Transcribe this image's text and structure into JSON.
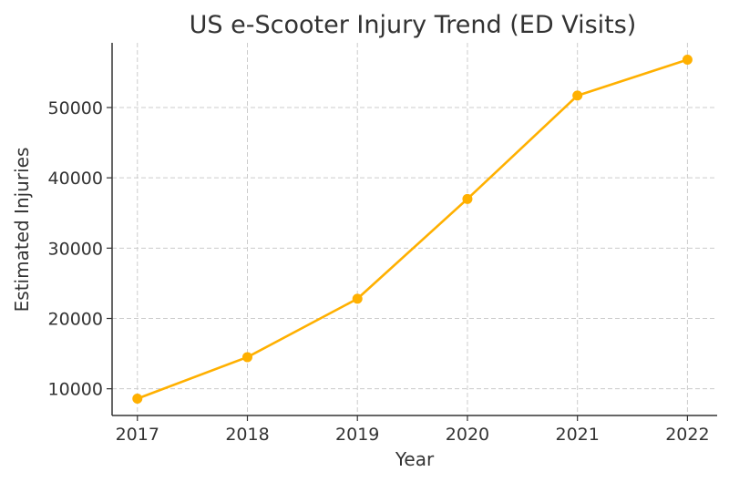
{
  "chart_data": {
    "type": "line",
    "title": "US e-Scooter Injury Trend (ED Visits)",
    "xlabel": "Year",
    "ylabel": "Estimated Injuries",
    "x": [
      2017,
      2018,
      2019,
      2020,
      2021,
      2022
    ],
    "x_tick_labels": [
      "2017",
      "2018",
      "2019",
      "2020",
      "2021",
      "2022"
    ],
    "series": [
      {
        "name": "Estimated Injuries",
        "values": [
          8600,
          14500,
          22800,
          37000,
          51700,
          56800
        ],
        "color": "#FFB000"
      }
    ],
    "y_ticks": [
      10000,
      20000,
      30000,
      40000,
      50000
    ],
    "y_tick_labels": [
      "10000",
      "20000",
      "30000",
      "40000",
      "50000"
    ],
    "xlim": [
      2016.77,
      2022.27
    ],
    "ylim": [
      6200,
      59200
    ],
    "grid": true,
    "legend": "none"
  }
}
